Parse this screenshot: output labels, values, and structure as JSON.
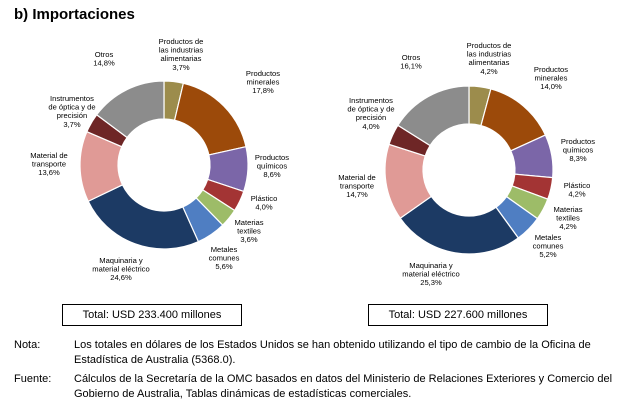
{
  "heading": "b) Importaciones",
  "chart_data": [
    {
      "type": "pie",
      "categories": [
        "Productos de las industrias alimentarias",
        "Productos minerales",
        "Productos químicos",
        "Plástico",
        "Materias textiles",
        "Metales comunes",
        "Maquinaria y material eléctrico",
        "Material de transporte",
        "Instrumentos de óptica y de precisión",
        "Otros"
      ],
      "values": [
        3.7,
        17.8,
        8.6,
        4.0,
        3.6,
        5.6,
        24.6,
        13.6,
        3.7,
        14.8
      ],
      "labels": [
        [
          "Productos de",
          "las industrias",
          "alimentarias",
          "3,7%"
        ],
        [
          "Productos",
          "minerales",
          "17,8%"
        ],
        [
          "Productos",
          "químicos",
          "8,6%"
        ],
        [
          "Plástico",
          "4,0%"
        ],
        [
          "Materias",
          "textiles",
          "3,6%"
        ],
        [
          "Metales",
          "comunes",
          "5,6%"
        ],
        [
          "Maquinaria y",
          "material eléctrico",
          "24,6%"
        ],
        [
          "Material de",
          "transporte",
          "13,6%"
        ],
        [
          "Instrumentos",
          "de óptica y de",
          "precisión",
          "3,7%"
        ],
        [
          "Otros",
          "14,8%"
        ]
      ],
      "total": "Total: USD 233.400 millones"
    },
    {
      "type": "pie",
      "categories": [
        "Productos de las industrias alimentarias",
        "Productos minerales",
        "Productos químicos",
        "Plástico",
        "Materias textiles",
        "Metales comunes",
        "Maquinaria y material eléctrico",
        "Material de transporte",
        "Instrumentos de óptica y de precisión",
        "Otros"
      ],
      "values": [
        4.2,
        14.0,
        8.3,
        4.2,
        4.2,
        5.2,
        25.3,
        14.7,
        4.0,
        16.1
      ],
      "labels": [
        [
          "Productos de",
          "las industrias",
          "alimentarias",
          "4,2%"
        ],
        [
          "Productos",
          "minerales",
          "14,0%"
        ],
        [
          "Productos",
          "químicos",
          "8,3%"
        ],
        [
          "Plástico",
          "4,2%"
        ],
        [
          "Materias",
          "textiles",
          "4,2%"
        ],
        [
          "Metales",
          "comunes",
          "5,2%"
        ],
        [
          "Maquinaria y",
          "material eléctrico",
          "25,3%"
        ],
        [
          "Material de",
          "transporte",
          "14,7%"
        ],
        [
          "Instrumentos",
          "de óptica y de",
          "precisión",
          "4,0%"
        ],
        [
          "Otros",
          "16,1%"
        ]
      ],
      "total": "Total: USD 227.600 millones"
    }
  ],
  "colors": [
    "#9c8c4c",
    "#9c4a0a",
    "#7b66a8",
    "#a33434",
    "#9dbc68",
    "#4f7ec2",
    "#1c3a64",
    "#e09a96",
    "#6e2626",
    "#8c8c8c"
  ],
  "notes": [
    {
      "key": "Nota:",
      "text": "Los totales en dólares de los Estados Unidos se han obtenido utilizando el tipo de cambio de la Oficina de Estadística de Australia (5368.0)."
    },
    {
      "key": "Fuente:",
      "text": "Cálculos de la Secretaría de la OMC basados en datos del Ministerio de Relaciones Exteriores y Comercio del Gobierno de Australia, Tablas dinámicas de estadísticas comerciales."
    }
  ]
}
